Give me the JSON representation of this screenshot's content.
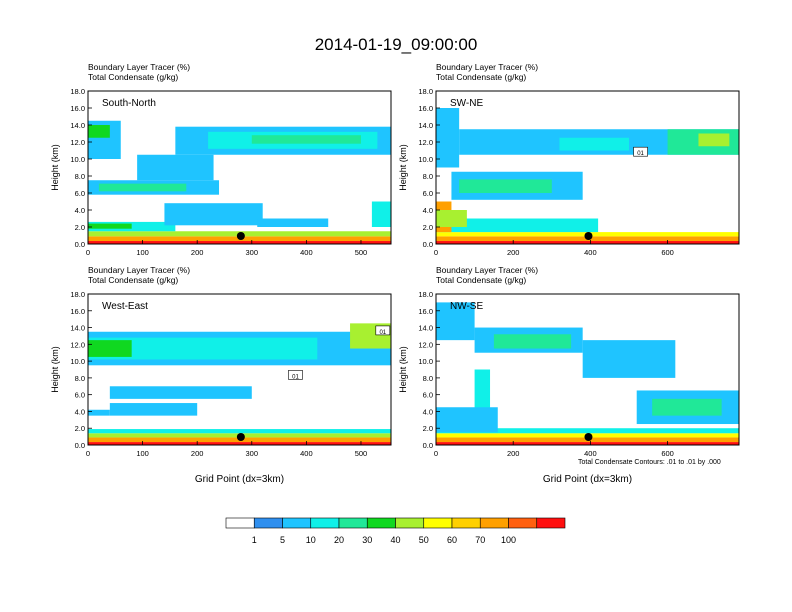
{
  "figure_title": "2014-01-19_09:00:00",
  "colors": {
    "levels": [
      "#ffffff",
      "#2f8fef",
      "#1fc4ff",
      "#10f0e8",
      "#20e898",
      "#10d820",
      "#a8f030",
      "#ffff00",
      "#ffd000",
      "#ffa000",
      "#ff6010",
      "#ff1010"
    ],
    "contour": "#000000"
  },
  "colorbar": {
    "labels": [
      "1",
      "5",
      "10",
      "20",
      "30",
      "40",
      "50",
      "60",
      "70",
      "100"
    ]
  },
  "footnote": "Total Condensate Contours: .01 to .01 by .000",
  "chart_data": [
    {
      "type": "heatmap",
      "title": "Boundary Layer Tracer    (%)",
      "subtitle": "Total Condensate    (g/kg)",
      "panel_label": "South-North",
      "xlabel": "",
      "ylabel": "Height (km)",
      "xlim": [
        0,
        555
      ],
      "ylim": [
        0,
        18
      ],
      "xticks": [
        "0",
        "100",
        "200",
        "300",
        "400",
        "500"
      ],
      "yticks": [
        "0.0",
        "2.0",
        "4.0",
        "6.0",
        "8.0",
        "10.0",
        "12.0",
        "14.0",
        "16.0",
        "18.0"
      ],
      "marker_x": 280,
      "contour_labels": [],
      "bands": [
        {
          "x": [
            0,
            555
          ],
          "y": [
            0,
            0.35
          ],
          "level": 11
        },
        {
          "x": [
            0,
            555
          ],
          "y": [
            0.35,
            0.9
          ],
          "level": 9
        },
        {
          "x": [
            0,
            555
          ],
          "y": [
            0.9,
            1.5
          ],
          "level": 6
        },
        {
          "x": [
            0,
            160
          ],
          "y": [
            1.5,
            2.6
          ],
          "level": 3
        },
        {
          "x": [
            0,
            80
          ],
          "y": [
            1.8,
            2.4
          ],
          "level": 5
        },
        {
          "x": [
            0,
            240
          ],
          "y": [
            5.8,
            7.5
          ],
          "level": 2
        },
        {
          "x": [
            20,
            180
          ],
          "y": [
            6.2,
            7.1
          ],
          "level": 4
        },
        {
          "x": [
            90,
            230
          ],
          "y": [
            7.5,
            10.5
          ],
          "level": 2
        },
        {
          "x": [
            160,
            555
          ],
          "y": [
            10.5,
            13.8
          ],
          "level": 2
        },
        {
          "x": [
            220,
            530
          ],
          "y": [
            11.2,
            13.2
          ],
          "level": 3
        },
        {
          "x": [
            300,
            500
          ],
          "y": [
            11.8,
            12.8
          ],
          "level": 4
        },
        {
          "x": [
            0,
            60
          ],
          "y": [
            10.0,
            14.5
          ],
          "level": 2
        },
        {
          "x": [
            0,
            40
          ],
          "y": [
            12.5,
            14.0
          ],
          "level": 5
        },
        {
          "x": [
            140,
            320
          ],
          "y": [
            2.2,
            4.8
          ],
          "level": 2
        },
        {
          "x": [
            310,
            440
          ],
          "y": [
            2.0,
            3.0
          ],
          "level": 2
        },
        {
          "x": [
            520,
            555
          ],
          "y": [
            2.0,
            5.0
          ],
          "level": 3
        }
      ]
    },
    {
      "type": "heatmap",
      "title": "Boundary Layer Tracer    (%)",
      "subtitle": "Total Condensate    (g/kg)",
      "panel_label": "SW-NE",
      "xlabel": "",
      "ylabel": "Height (km)",
      "xlim": [
        0,
        785
      ],
      "ylim": [
        0,
        18
      ],
      "xticks": [
        "0",
        "200",
        "400",
        "600"
      ],
      "yticks": [
        "0.0",
        "2.0",
        "4.0",
        "6.0",
        "8.0",
        "10.0",
        "12.0",
        "14.0",
        "16.0",
        "18.0"
      ],
      "marker_x": 395,
      "contour_labels": [
        {
          "text": "01",
          "x": 530,
          "y": 10.8
        }
      ],
      "bands": [
        {
          "x": [
            0,
            785
          ],
          "y": [
            0,
            0.35
          ],
          "level": 11
        },
        {
          "x": [
            0,
            785
          ],
          "y": [
            0.35,
            0.9
          ],
          "level": 9
        },
        {
          "x": [
            0,
            785
          ],
          "y": [
            0.9,
            1.4
          ],
          "level": 7
        },
        {
          "x": [
            0,
            420
          ],
          "y": [
            1.4,
            3.0
          ],
          "level": 3
        },
        {
          "x": [
            0,
            40
          ],
          "y": [
            1.4,
            5.0
          ],
          "level": 9
        },
        {
          "x": [
            0,
            80
          ],
          "y": [
            2.0,
            4.0
          ],
          "level": 6
        },
        {
          "x": [
            40,
            380
          ],
          "y": [
            5.2,
            8.5
          ],
          "level": 2
        },
        {
          "x": [
            60,
            300
          ],
          "y": [
            6.0,
            7.6
          ],
          "level": 4
        },
        {
          "x": [
            0,
            60
          ],
          "y": [
            9.0,
            16.0
          ],
          "level": 2
        },
        {
          "x": [
            60,
            785
          ],
          "y": [
            10.5,
            13.5
          ],
          "level": 2
        },
        {
          "x": [
            320,
            500
          ],
          "y": [
            11.0,
            12.5
          ],
          "level": 3
        },
        {
          "x": [
            600,
            785
          ],
          "y": [
            10.5,
            13.5
          ],
          "level": 4
        },
        {
          "x": [
            680,
            760
          ],
          "y": [
            11.5,
            13.0
          ],
          "level": 6
        }
      ]
    },
    {
      "type": "heatmap",
      "title": "Boundary Layer Tracer    (%)",
      "subtitle": "Total Condensate    (g/kg)",
      "panel_label": "West-East",
      "xlabel": "Grid Point (dx=3km)",
      "ylabel": "Height (km)",
      "xlim": [
        0,
        555
      ],
      "ylim": [
        0,
        18
      ],
      "xticks": [
        "0",
        "100",
        "200",
        "300",
        "400",
        "500"
      ],
      "yticks": [
        "0.0",
        "2.0",
        "4.0",
        "6.0",
        "8.0",
        "10.0",
        "12.0",
        "14.0",
        "16.0",
        "18.0"
      ],
      "marker_x": 280,
      "contour_labels": [
        {
          "text": "01",
          "x": 380,
          "y": 8.3
        },
        {
          "text": "01",
          "x": 540,
          "y": 13.6
        }
      ],
      "bands": [
        {
          "x": [
            0,
            555
          ],
          "y": [
            0,
            0.35
          ],
          "level": 11
        },
        {
          "x": [
            0,
            555
          ],
          "y": [
            0.35,
            0.9
          ],
          "level": 9
        },
        {
          "x": [
            0,
            555
          ],
          "y": [
            0.9,
            1.4
          ],
          "level": 6
        },
        {
          "x": [
            0,
            555
          ],
          "y": [
            1.4,
            1.9
          ],
          "level": 3
        },
        {
          "x": [
            0,
            555
          ],
          "y": [
            9.5,
            13.5
          ],
          "level": 2
        },
        {
          "x": [
            0,
            420
          ],
          "y": [
            10.2,
            12.8
          ],
          "level": 3
        },
        {
          "x": [
            0,
            80
          ],
          "y": [
            10.5,
            12.5
          ],
          "level": 5
        },
        {
          "x": [
            40,
            300
          ],
          "y": [
            5.5,
            7.0
          ],
          "level": 2
        },
        {
          "x": [
            40,
            200
          ],
          "y": [
            3.5,
            5.0
          ],
          "level": 2
        },
        {
          "x": [
            0,
            40
          ],
          "y": [
            3.5,
            4.2
          ],
          "level": 2
        },
        {
          "x": [
            480,
            555
          ],
          "y": [
            11.5,
            14.5
          ],
          "level": 6
        }
      ]
    },
    {
      "type": "heatmap",
      "title": "Boundary Layer Tracer    (%)",
      "subtitle": "Total Condensate    (g/kg)",
      "panel_label": "NW-SE",
      "xlabel": "Grid Point (dx=3km)",
      "ylabel": "Height (km)",
      "xlim": [
        0,
        785
      ],
      "ylim": [
        0,
        18
      ],
      "xticks": [
        "0",
        "200",
        "400",
        "600"
      ],
      "yticks": [
        "0.0",
        "2.0",
        "4.0",
        "6.0",
        "8.0",
        "10.0",
        "12.0",
        "14.0",
        "16.0",
        "18.0"
      ],
      "marker_x": 395,
      "contour_labels": [],
      "bands": [
        {
          "x": [
            0,
            785
          ],
          "y": [
            0,
            0.35
          ],
          "level": 11
        },
        {
          "x": [
            0,
            785
          ],
          "y": [
            0.35,
            0.9
          ],
          "level": 9
        },
        {
          "x": [
            0,
            785
          ],
          "y": [
            0.9,
            1.4
          ],
          "level": 7
        },
        {
          "x": [
            0,
            785
          ],
          "y": [
            1.4,
            2.0
          ],
          "level": 3
        },
        {
          "x": [
            0,
            100
          ],
          "y": [
            12.5,
            17.0
          ],
          "level": 2
        },
        {
          "x": [
            100,
            380
          ],
          "y": [
            11.0,
            14.0
          ],
          "level": 2
        },
        {
          "x": [
            150,
            350
          ],
          "y": [
            11.5,
            13.2
          ],
          "level": 4
        },
        {
          "x": [
            380,
            620
          ],
          "y": [
            8.0,
            12.5
          ],
          "level": 2
        },
        {
          "x": [
            520,
            785
          ],
          "y": [
            2.5,
            6.5
          ],
          "level": 2
        },
        {
          "x": [
            560,
            740
          ],
          "y": [
            3.5,
            5.5
          ],
          "level": 4
        },
        {
          "x": [
            100,
            140
          ],
          "y": [
            1.5,
            9.0
          ],
          "level": 3
        },
        {
          "x": [
            0,
            160
          ],
          "y": [
            1.5,
            4.5
          ],
          "level": 2
        }
      ]
    }
  ]
}
